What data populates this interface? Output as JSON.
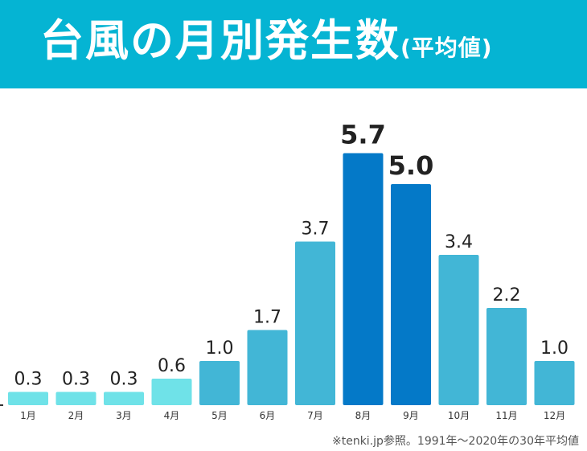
{
  "header": {
    "title": "台風の月別発生数",
    "subtitle": "(平均値)"
  },
  "chart_data": {
    "type": "bar",
    "categories": [
      "1月",
      "2月",
      "3月",
      "4月",
      "5月",
      "6月",
      "7月",
      "8月",
      "9月",
      "10月",
      "11月",
      "12月"
    ],
    "values": [
      0.3,
      0.3,
      0.3,
      0.6,
      1.0,
      1.7,
      3.7,
      5.7,
      5.0,
      3.4,
      2.2,
      1.0
    ],
    "value_labels": [
      "0.3",
      "0.3",
      "0.3",
      "0.6",
      "1.0",
      "1.7",
      "3.7",
      "5.7",
      "5.0",
      "3.4",
      "2.2",
      "1.0"
    ],
    "highlight": [
      "8月",
      "9月"
    ],
    "ylim": [
      0,
      6
    ],
    "grid": false,
    "colors": {
      "low": "#6fe2e8",
      "normal": "#42b6d6",
      "highlight": "#0479c8",
      "label": "#222222",
      "header": "#05b4d3"
    }
  },
  "footer": {
    "note": "※tenki.jp参照。1991年〜2020年の30年平均値"
  }
}
